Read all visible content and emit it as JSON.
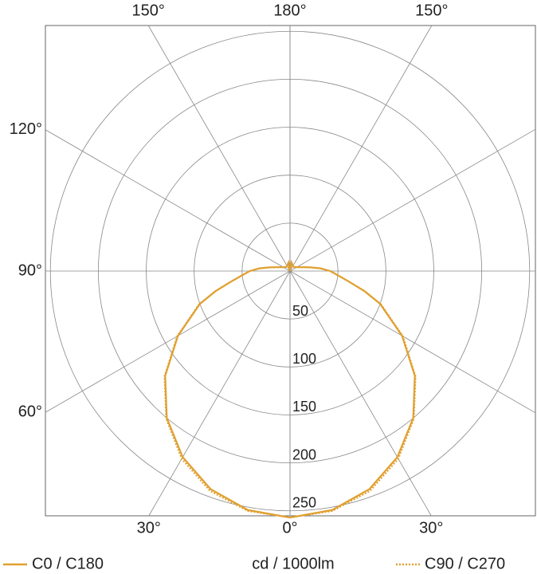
{
  "chart_data": {
    "type": "polar",
    "angles": [
      0,
      10,
      20,
      30,
      40,
      50,
      60,
      70,
      75,
      80,
      85,
      90,
      95,
      100,
      110,
      120,
      135,
      150,
      165,
      170,
      180
    ],
    "series": [
      {
        "name": "C0 / C180",
        "color": "#e0a030",
        "style": "solid",
        "values": [
          257,
          253,
          242,
          224,
          200,
          170,
          135,
          100,
          80,
          62,
          50,
          42,
          32,
          22,
          12,
          8,
          6,
          6,
          8,
          9,
          0
        ]
      },
      {
        "name": "C90 / C270",
        "color": "#e0a030",
        "style": "dotted",
        "values": [
          257,
          254,
          244,
          226,
          201,
          171,
          136,
          101,
          81,
          62,
          50,
          42,
          32,
          22,
          12,
          8,
          6,
          6,
          8,
          9,
          0
        ]
      }
    ],
    "unit_label": "cd / 1000lm",
    "rlim": [
      0,
      256
    ],
    "rticks": [
      50,
      100,
      150,
      200,
      250
    ],
    "angle_ticks": [
      0,
      30,
      60,
      90,
      120,
      150,
      180
    ],
    "angle_labels": [
      {
        "value": 150,
        "label": "150°",
        "side": "left"
      },
      {
        "value": 180,
        "label": "180°",
        "side": "right"
      },
      {
        "value": 150,
        "label": "150°",
        "side": "right"
      },
      {
        "value": 120,
        "label": "120°",
        "side": "left"
      },
      {
        "value": 90,
        "label": "90°",
        "side": "left"
      },
      {
        "value": 60,
        "label": "60°",
        "side": "left"
      },
      {
        "value": 30,
        "label": "30°",
        "side": "left"
      },
      {
        "value": 0,
        "label": "0°",
        "side": "right"
      },
      {
        "value": 30,
        "label": "30°",
        "side": "right"
      }
    ]
  }
}
